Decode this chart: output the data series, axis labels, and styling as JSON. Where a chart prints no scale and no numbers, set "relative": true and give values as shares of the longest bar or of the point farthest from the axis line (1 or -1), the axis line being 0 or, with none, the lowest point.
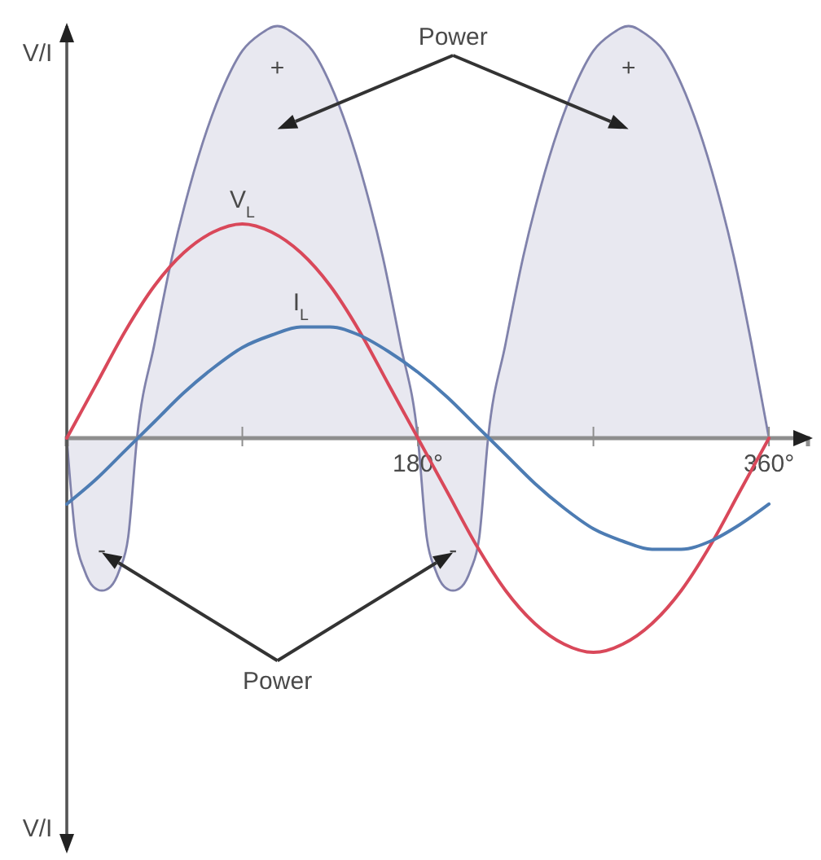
{
  "chart_data": {
    "type": "line",
    "relative": true,
    "ylabel": "V/I",
    "xlim": [
      0,
      380
    ],
    "xticks": [
      {
        "value": 90,
        "label": null
      },
      {
        "value": 180,
        "label": "180°"
      },
      {
        "value": 270,
        "label": null
      },
      {
        "value": 360,
        "label": "360°"
      }
    ],
    "series": [
      {
        "type": "area",
        "color": "#8082ab",
        "x": [
          0,
          4.5,
          9,
          13.5,
          18,
          22.5,
          27,
          31.5,
          36,
          45,
          54,
          63,
          72,
          81,
          90,
          99,
          108,
          117,
          126,
          135,
          144,
          153,
          162,
          171,
          180,
          184.5,
          189,
          193.5,
          198,
          202.5,
          207,
          211.5,
          216,
          225,
          234,
          243,
          252,
          261,
          270,
          279,
          288,
          297,
          306,
          315,
          324,
          333,
          342,
          351,
          360
        ],
        "values": [
          0,
          -0.24,
          -0.32,
          -0.36,
          -0.37,
          -0.36,
          -0.32,
          -0.24,
          0,
          0.23,
          0.44,
          0.61,
          0.75,
          0.86,
          0.94,
          0.98,
          1,
          0.98,
          0.94,
          0.86,
          0.75,
          0.61,
          0.44,
          0.23,
          0,
          -0.24,
          -0.32,
          -0.36,
          -0.37,
          -0.36,
          -0.32,
          -0.24,
          0,
          0.23,
          0.44,
          0.61,
          0.75,
          0.86,
          0.94,
          0.98,
          1,
          0.98,
          0.94,
          0.86,
          0.75,
          0.61,
          0.44,
          0.23,
          0
        ]
      },
      {
        "name": "V$_{L}$",
        "color": "#d9485a",
        "x": [
          0,
          15,
          30,
          45,
          60,
          75,
          90,
          105,
          120,
          135,
          150,
          165,
          180,
          195,
          210,
          225,
          240,
          255,
          270,
          285,
          300,
          315,
          330,
          345,
          360
        ],
        "values": [
          0,
          0.13,
          0.26,
          0.37,
          0.45,
          0.5,
          0.52,
          0.5,
          0.45,
          0.37,
          0.26,
          0.13,
          0,
          -0.13,
          -0.26,
          -0.37,
          -0.45,
          -0.5,
          -0.52,
          -0.5,
          -0.45,
          -0.37,
          -0.26,
          -0.13,
          0
        ]
      },
      {
        "name": "I$_{L}$",
        "color": "#4d7cb3",
        "x": [
          0,
          15,
          30,
          45,
          60,
          75,
          90,
          105,
          120,
          135,
          150,
          165,
          180,
          195,
          210,
          225,
          240,
          255,
          270,
          285,
          300,
          315,
          330,
          345,
          360
        ],
        "values": [
          -0.16,
          -0.1,
          -0.03,
          0.04,
          0.11,
          0.17,
          0.22,
          0.25,
          0.27,
          0.27,
          0.25,
          0.21,
          0.16,
          0.1,
          0.03,
          -0.04,
          -0.11,
          -0.17,
          -0.22,
          -0.25,
          -0.27,
          -0.27,
          -0.25,
          -0.21,
          -0.16
        ]
      }
    ],
    "annotations": [
      "Power",
      "+",
      "+",
      "-",
      "-",
      "Power"
    ]
  }
}
